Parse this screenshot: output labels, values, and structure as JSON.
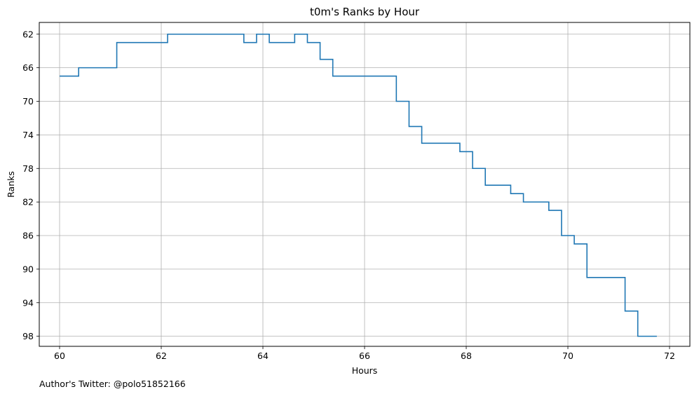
{
  "chart_data": {
    "type": "line",
    "drawstyle": "steps-post",
    "title": "t0m's Ranks by Hour",
    "xlabel": "Hours",
    "ylabel": "Ranks",
    "xlim": [
      59.6,
      72.4
    ],
    "ylim": [
      99.2,
      60.6
    ],
    "y_inverted": true,
    "grid": true,
    "xticks": [
      60,
      62,
      64,
      66,
      68,
      70,
      72
    ],
    "yticks": [
      62,
      66,
      70,
      74,
      78,
      82,
      86,
      90,
      94,
      98
    ],
    "line_color": "#1f77b4",
    "series": [
      {
        "x": [
          60.0,
          60.375,
          61.125,
          62.125,
          63.625,
          63.875,
          64.125,
          64.625,
          64.875,
          65.125,
          65.375,
          66.625,
          66.875,
          67.125,
          67.875,
          68.125,
          68.375,
          68.875,
          69.125,
          69.625,
          69.875,
          70.125,
          70.375,
          71.125,
          71.375,
          71.75
        ],
        "y": [
          67,
          66,
          63,
          62,
          63,
          62,
          63,
          62,
          63,
          65,
          67,
          70,
          73,
          75,
          76,
          78,
          80,
          81,
          82,
          83,
          86,
          87,
          91,
          95,
          98,
          98
        ]
      }
    ]
  },
  "footer": {
    "credit": "Author's Twitter: @polo51852166"
  }
}
